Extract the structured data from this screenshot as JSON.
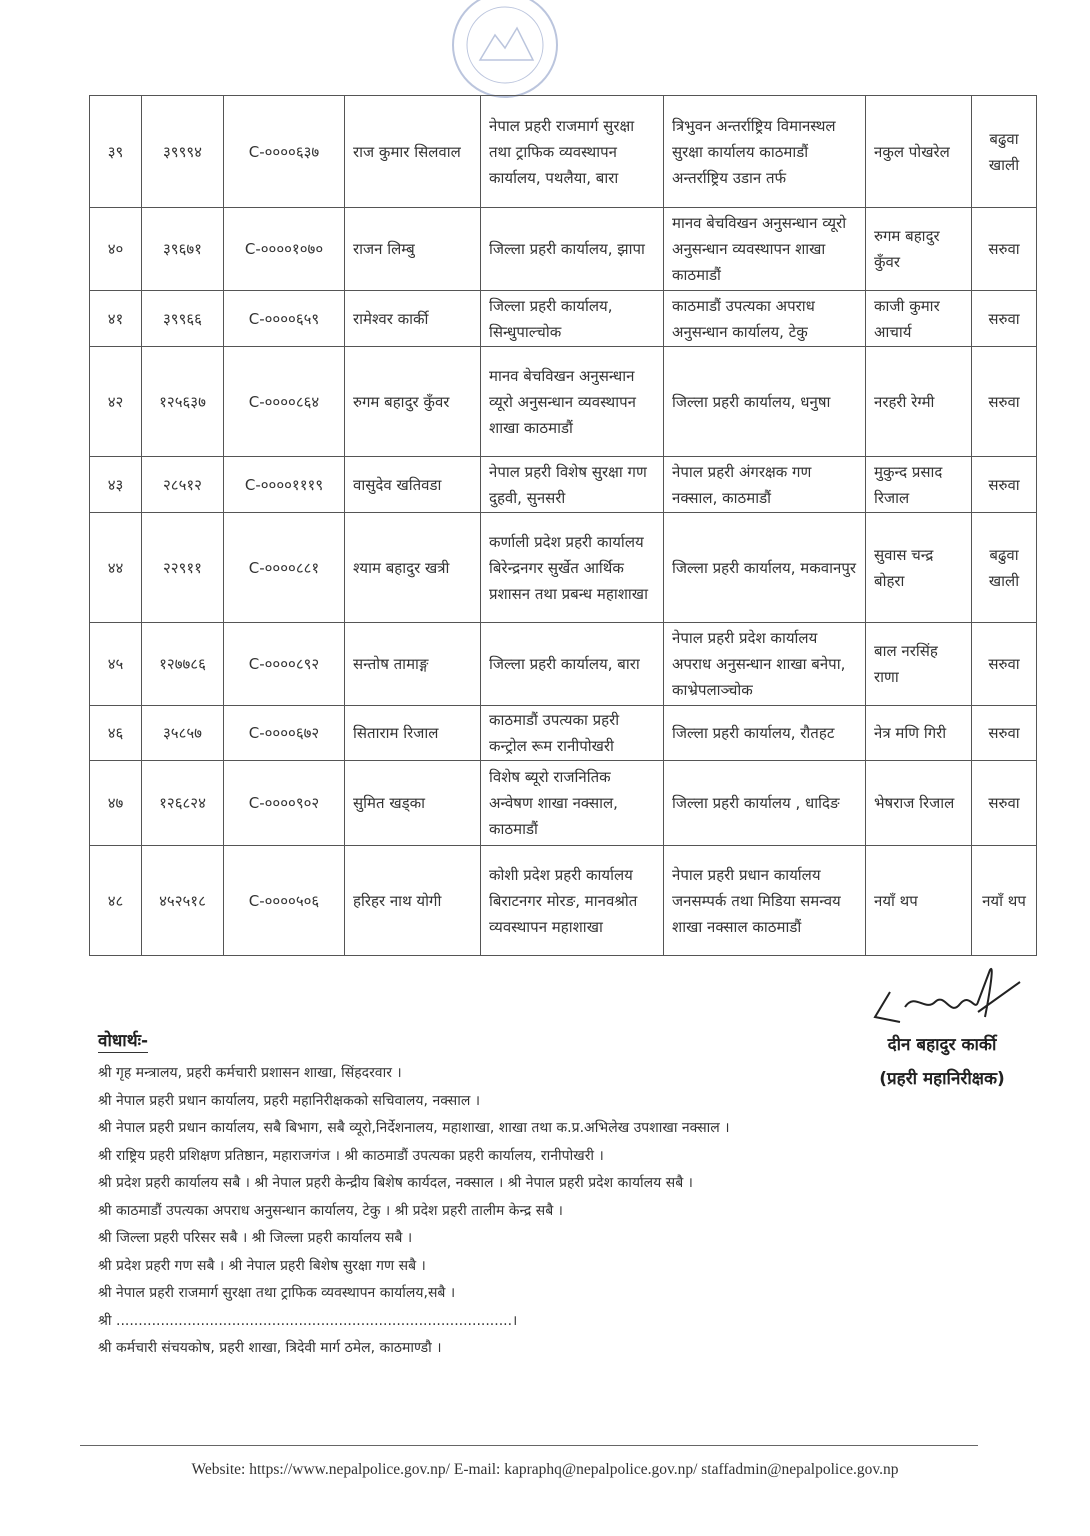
{
  "table": {
    "rows": [
      {
        "sn": "३९",
        "id": "३९९९४",
        "code": "C-००००६३७",
        "name": "राज कुमार सिलवाल",
        "from": "नेपाल प्रहरी राजमार्ग सुरक्षा तथा ट्राफिक व्यवस्थापन कार्यालय, पथलैया, बारा",
        "to": "त्रिभुवन अन्तर्राष्ट्रिय विमानस्थल सुरक्षा कार्यालय काठमाडौं अन्तर्राष्ट्रिय उडान तर्फ",
        "replace": "नकुल पोखरेल",
        "remark": "बढुवा खाली"
      },
      {
        "sn": "४०",
        "id": "३९६७१",
        "code": "C-००००१०७०",
        "name": "राजन लिम्बु",
        "from": "जिल्ला प्रहरी कार्यालय, झापा",
        "to": "मानव बेचविखन अनुसन्धान व्यूरो अनुसन्धान व्यवस्थापन शाखा काठमाडौं",
        "replace": "रुगम बहादुर कुँवर",
        "remark": "सरुवा"
      },
      {
        "sn": "४१",
        "id": "३९९६६",
        "code": "C-००००६५९",
        "name": "रामेश्वर कार्की",
        "from": "जिल्ला प्रहरी कार्यालय, सिन्धुपाल्चोक",
        "to": "काठमाडौं उपत्यका अपराध अनुसन्धान कार्यालय, टेकु",
        "replace": "काजी कुमार आचार्य",
        "remark": "सरुवा"
      },
      {
        "sn": "४२",
        "id": "१२५६३७",
        "code": "C-००००८६४",
        "name": "रुगम बहादुर कुँवर",
        "from": "मानव बेचविखन अनुसन्धान व्यूरो अनुसन्धान व्यवस्थापन शाखा काठमाडौं",
        "to": "जिल्ला प्रहरी कार्यालय, धनुषा",
        "replace": "नरहरी रेग्मी",
        "remark": "सरुवा"
      },
      {
        "sn": "४३",
        "id": "२८५१२",
        "code": "C-००००१११९",
        "name": "वासुदेव खतिवडा",
        "from": "नेपाल प्रहरी विशेष सुरक्षा गण दुहवी, सुनसरी",
        "to": "नेपाल प्रहरी अंगरक्षक गण नक्साल, काठमाडौं",
        "replace": "मुकुन्द प्रसाद रिजाल",
        "remark": "सरुवा"
      },
      {
        "sn": "४४",
        "id": "२२९११",
        "code": "C-००००८८१",
        "name": "श्याम बहादुर खत्री",
        "from": "कर्णाली प्रदेश प्रहरी कार्यालय बिरेन्द्रनगर सुर्खेत आर्थिक प्रशासन तथा प्रबन्ध महाशाखा",
        "to": "जिल्ला प्रहरी कार्यालय, मकवानपुर",
        "replace": "सुवास चन्द्र बोहरा",
        "remark": "बढुवा खाली"
      },
      {
        "sn": "४५",
        "id": "१२७७८६",
        "code": "C-००००८९२",
        "name": "सन्तोष तामाङ्ग",
        "from": "जिल्ला प्रहरी कार्यालय, बारा",
        "to": "नेपाल प्रहरी प्रदेश कार्यालय अपराध अनुसन्धान शाखा बनेपा, काभ्रेपलाञ्चोक",
        "replace": "बाल नरसिंह राणा",
        "remark": "सरुवा"
      },
      {
        "sn": "४६",
        "id": "३५८५७",
        "code": "C-००००६७२",
        "name": "सिताराम रिजाल",
        "from": "काठमाडौं उपत्यका प्रहरी कन्ट्रोल रूम रानीपोखरी",
        "to": "जिल्ला प्रहरी कार्यालय, रौतहट",
        "replace": "नेत्र मणि गिरी",
        "remark": "सरुवा"
      },
      {
        "sn": "४७",
        "id": "१२६८२४",
        "code": "C-००००९०२",
        "name": "सुमित खड्का",
        "from": "विशेष ब्यूरो राजनितिक अन्वेषण शाखा नक्साल, काठमाडौं",
        "to": "जिल्ला प्रहरी कार्यालय , धादिङ",
        "replace": "भेषराज रिजाल",
        "remark": "सरुवा"
      },
      {
        "sn": "४८",
        "id": "४५२५१८",
        "code": "C-००००५०६",
        "name": "हरिहर नाथ योगी",
        "from": "कोशी प्रदेश प्रहरी कार्यालय बिराटनगर मोरङ, मानवश्रोत व्यवस्थापन महाशाखा",
        "to": "नेपाल प्रहरी प्रधान कार्यालय जनसम्पर्क तथा मिडिया समन्वय शाखा नक्साल काठमाडौं",
        "replace": "नयाँ थप",
        "remark": "नयाँ थप"
      }
    ]
  },
  "signatory": {
    "name": "दीन बहादुर कार्की",
    "title": "(प्रहरी महानिरीक्षक)"
  },
  "cc": {
    "heading": "वोधार्थः-",
    "lines": [
      "श्री गृह मन्त्रालय, प्रहरी कर्मचारी प्रशासन शाखा, सिंहदरवार ।",
      "श्री नेपाल प्रहरी प्रधान कार्यालय, प्रहरी महानिरीक्षकको सचिवालय, नक्साल ।",
      "श्री नेपाल प्रहरी प्रधान कार्यालय, सबै बिभाग, सबै व्यूरो,निर्देशनालय, महाशाखा, शाखा तथा क.प्र.अभिलेख उपशाखा नक्साल ।",
      "श्री राष्ट्रिय प्रहरी प्रशिक्षण प्रतिष्ठान, महाराजगंज । श्री काठमाडौं उपत्यका प्रहरी कार्यालय, रानीपोखरी ।",
      "श्री प्रदेश प्रहरी कार्यालय सबै  । श्री नेपाल प्रहरी केन्द्रीय बिशेष कार्यदल, नक्साल । श्री नेपाल प्रहरी प्रदेश कार्यालय सबै  ।",
      "श्री काठमाडौं उपत्यका अपराध अनुसन्धान कार्यालय, टेकु । श्री प्रदेश प्रहरी तालीम केन्द्र सबै ।",
      "श्री जिल्ला प्रहरी परिसर सबै  । श्री जिल्ला प्रहरी कार्यालय सबै  ।",
      "श्री प्रदेश प्रहरी गण सबै । श्री नेपाल प्रहरी बिशेष सुरक्षा गण सबै ।",
      "श्री नेपाल प्रहरी राजमार्ग सुरक्षा तथा ट्राफिक व्यवस्थापन कार्यालय,सबै ।",
      "श्री .........................................................................................।",
      "श्री कर्मचारी संचयकोष, प्रहरी शाखा, त्रिदेवी मार्ग ठमेल, काठमाण्डौ ।"
    ]
  },
  "footer": {
    "text": "Website: https://www.nepalpolice.gov.np/ E-mail: kapraphq@nepalpolice.gov.np/ staffadmin@nepalpolice.gov.np"
  }
}
